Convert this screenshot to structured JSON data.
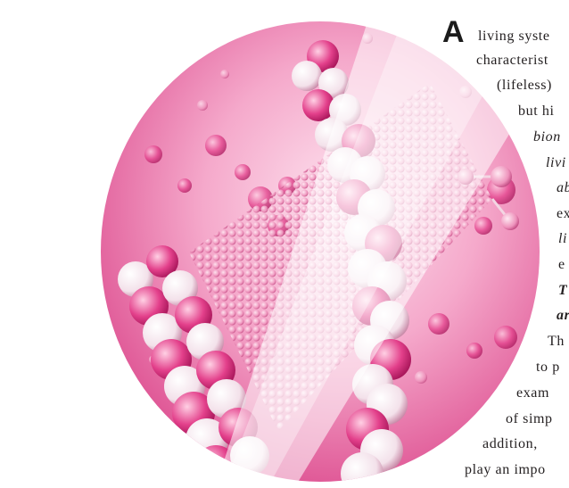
{
  "paragraph": {
    "drop_cap": "A",
    "lines": [
      "living syste",
      "characterist",
      "(lifeless)",
      "but hi",
      "bion",
      "livi",
      "ab",
      "ex",
      "li",
      "e",
      "T",
      "ar",
      "Th",
      "to p",
      "exam",
      "of simp",
      "addition,",
      "play an impo"
    ]
  },
  "colors": {
    "accent_pink": "#e0418a",
    "light_pink": "#f7c6dc",
    "text": "#231f20"
  },
  "figure": {
    "icon": "dna-molecule-illustration"
  }
}
